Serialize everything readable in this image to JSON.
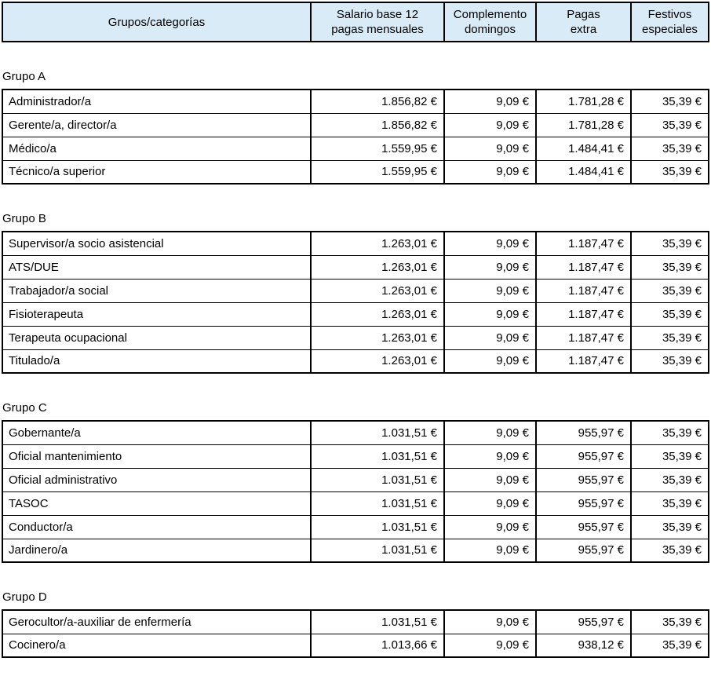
{
  "table": {
    "columns": [
      "Grupos/categorías",
      "Salario base 12\npagas mensuales",
      "Complemento\ndomingos",
      "Pagas\nextra",
      "Festivos\nespeciales"
    ]
  },
  "colors": {
    "header_bg": "#D9EBF7",
    "border": "#000000",
    "text": "#000000"
  },
  "groups": [
    {
      "label": "Grupo A",
      "rows": [
        {
          "category": "Administrador/a",
          "values": [
            "1.856,82 €",
            "9,09 €",
            "1.781,28 €",
            "35,39 €"
          ]
        },
        {
          "category": "Gerente/a, director/a",
          "values": [
            "1.856,82 €",
            "9,09 €",
            "1.781,28 €",
            "35,39 €"
          ]
        },
        {
          "category": "Médico/a",
          "values": [
            "1.559,95 €",
            "9,09 €",
            "1.484,41 €",
            "35,39 €"
          ]
        },
        {
          "category": "Técnico/a superior",
          "values": [
            "1.559,95 €",
            "9,09 €",
            "1.484,41 €",
            "35,39 €"
          ]
        }
      ]
    },
    {
      "label": "Grupo B",
      "rows": [
        {
          "category": "Supervisor/a socio asistencial",
          "values": [
            "1.263,01 €",
            "9,09 €",
            "1.187,47 €",
            "35,39 €"
          ]
        },
        {
          "category": "ATS/DUE",
          "values": [
            "1.263,01 €",
            "9,09 €",
            "1.187,47 €",
            "35,39 €"
          ]
        },
        {
          "category": "Trabajador/a social",
          "values": [
            "1.263,01 €",
            "9,09 €",
            "1.187,47 €",
            "35,39 €"
          ]
        },
        {
          "category": "Fisioterapeuta",
          "values": [
            "1.263,01 €",
            "9,09 €",
            "1.187,47 €",
            "35,39 €"
          ]
        },
        {
          "category": "Terapeuta ocupacional",
          "values": [
            "1.263,01 €",
            "9,09 €",
            "1.187,47 €",
            "35,39 €"
          ]
        },
        {
          "category": "Titulado/a",
          "values": [
            "1.263,01 €",
            "9,09 €",
            "1.187,47 €",
            "35,39 €"
          ]
        }
      ]
    },
    {
      "label": "Grupo C",
      "rows": [
        {
          "category": "Gobernante/a",
          "values": [
            "1.031,51 €",
            "9,09 €",
            "955,97 €",
            "35,39 €"
          ]
        },
        {
          "category": "Oficial mantenimiento",
          "values": [
            "1.031,51 €",
            "9,09 €",
            "955,97 €",
            "35,39 €"
          ]
        },
        {
          "category": "Oficial administrativo",
          "values": [
            "1.031,51 €",
            "9,09 €",
            "955,97 €",
            "35,39 €"
          ]
        },
        {
          "category": "TASOC",
          "values": [
            "1.031,51 €",
            "9,09 €",
            "955,97 €",
            "35,39 €"
          ]
        },
        {
          "category": "Conductor/a",
          "values": [
            "1.031,51 €",
            "9,09 €",
            "955,97 €",
            "35,39 €"
          ]
        },
        {
          "category": "Jardinero/a",
          "values": [
            "1.031,51 €",
            "9,09 €",
            "955,97 €",
            "35,39 €"
          ]
        }
      ]
    },
    {
      "label": "Grupo D",
      "rows": [
        {
          "category": "Gerocultor/a-auxiliar de enfermería",
          "values": [
            "1.031,51 €",
            "9,09 €",
            "955,97 €",
            "35,39 €"
          ]
        },
        {
          "category": "Cocinero/a",
          "values": [
            "1.013,66 €",
            "9,09 €",
            "938,12 €",
            "35,39 €"
          ]
        }
      ]
    }
  ]
}
